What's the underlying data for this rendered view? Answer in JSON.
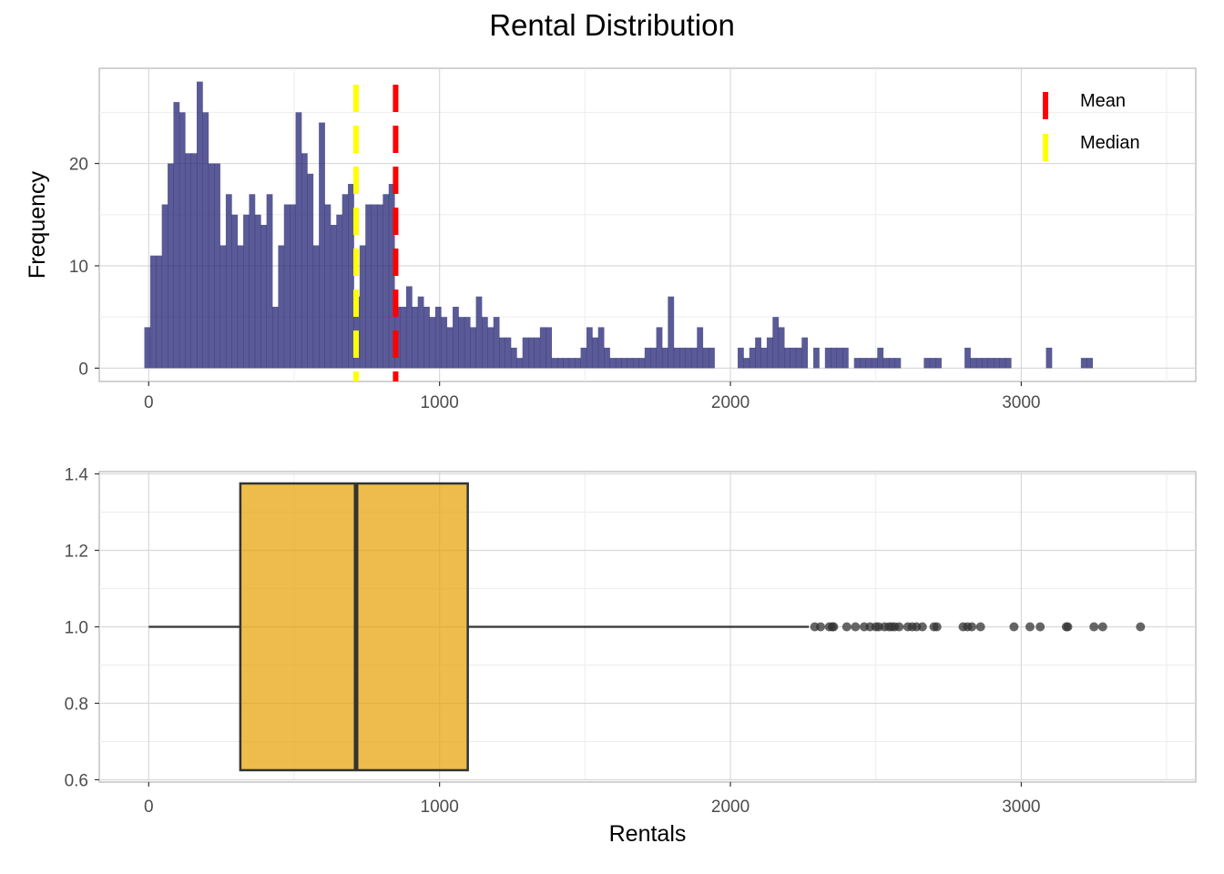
{
  "title": "Rental Distribution",
  "chart_data": [
    {
      "type": "histogram",
      "ylabel": "Frequency",
      "xlabel": "",
      "bin_start": -15,
      "bin_width": 20,
      "counts": [
        4,
        11,
        11,
        16,
        20,
        26,
        25,
        21,
        21,
        28,
        25,
        20,
        20,
        12,
        17,
        15,
        12,
        15,
        17,
        15,
        14,
        17,
        6,
        12,
        16,
        16,
        25,
        21,
        19,
        12,
        24,
        16,
        14,
        15,
        17,
        18,
        7,
        12,
        16,
        16,
        16,
        17,
        18,
        6,
        6,
        8,
        6,
        7,
        6,
        5,
        6,
        5,
        4,
        6,
        5,
        5,
        4,
        7,
        5,
        4,
        5,
        3,
        3,
        2,
        1,
        3,
        3,
        3,
        4,
        4,
        1,
        1,
        1,
        1,
        1,
        2,
        4,
        3,
        4,
        2,
        1,
        1,
        1,
        1,
        1,
        1,
        2,
        2,
        4,
        2,
        7,
        2,
        2,
        2,
        2,
        4,
        2,
        2,
        0,
        0,
        0,
        0,
        2,
        1,
        2,
        3,
        2,
        3,
        5,
        4,
        2,
        2,
        2,
        3,
        0,
        2,
        0,
        2,
        2,
        2,
        2,
        0,
        1,
        1,
        1,
        1,
        2,
        1,
        1,
        1,
        0,
        0,
        0,
        0,
        1,
        1,
        1,
        0,
        0,
        0,
        0,
        2,
        1,
        1,
        1,
        1,
        1,
        1,
        1,
        0,
        0,
        0,
        0,
        0,
        0,
        2,
        0,
        0,
        0,
        0,
        0,
        1,
        1,
        0,
        0,
        0
      ],
      "x_ticks": [
        0,
        1000,
        2000,
        3000
      ],
      "x_tick_labels": [
        "0",
        "1000",
        "2000",
        "3000"
      ],
      "xlim": [
        -170,
        3600
      ],
      "y_ticks": [
        0,
        10,
        20
      ],
      "y_tick_labels": [
        "0",
        "10",
        "20"
      ],
      "ylim": [
        -1.3,
        29.3
      ],
      "bar_color": "#2b2b7a",
      "reference_lines": [
        {
          "name": "Mean",
          "value": 849,
          "color": "#ff0000"
        },
        {
          "name": "Median",
          "value": 713,
          "color": "#ffff00"
        }
      ],
      "legend_position": "top-right",
      "grid": true
    },
    {
      "type": "boxplot",
      "xlabel": "Rentals",
      "ylabel": "",
      "box": {
        "min": 0,
        "q1": 315,
        "median": 713,
        "q3": 1097,
        "whisker_high": 2270,
        "y_center": 1.0,
        "y_low": 0.625,
        "y_high": 1.375
      },
      "outliers": [
        2290,
        2310,
        2340,
        2350,
        2355,
        2400,
        2430,
        2460,
        2480,
        2500,
        2510,
        2530,
        2545,
        2555,
        2565,
        2580,
        2610,
        2625,
        2640,
        2660,
        2700,
        2710,
        2800,
        2815,
        2830,
        2860,
        2975,
        3030,
        3065,
        3155,
        3160,
        3250,
        3280,
        3410
      ],
      "x_ticks": [
        0,
        1000,
        2000,
        3000
      ],
      "x_tick_labels": [
        "0",
        "1000",
        "2000",
        "3000"
      ],
      "xlim": [
        -170,
        3600
      ],
      "y_ticks": [
        0.6,
        0.8,
        1.0,
        1.2,
        1.4
      ],
      "y_tick_labels": [
        "0.6",
        "0.8",
        "1.0",
        "1.2",
        "1.4"
      ],
      "ylim": [
        0.594,
        1.406
      ],
      "box_color": "#e69f00",
      "grid": true
    }
  ]
}
